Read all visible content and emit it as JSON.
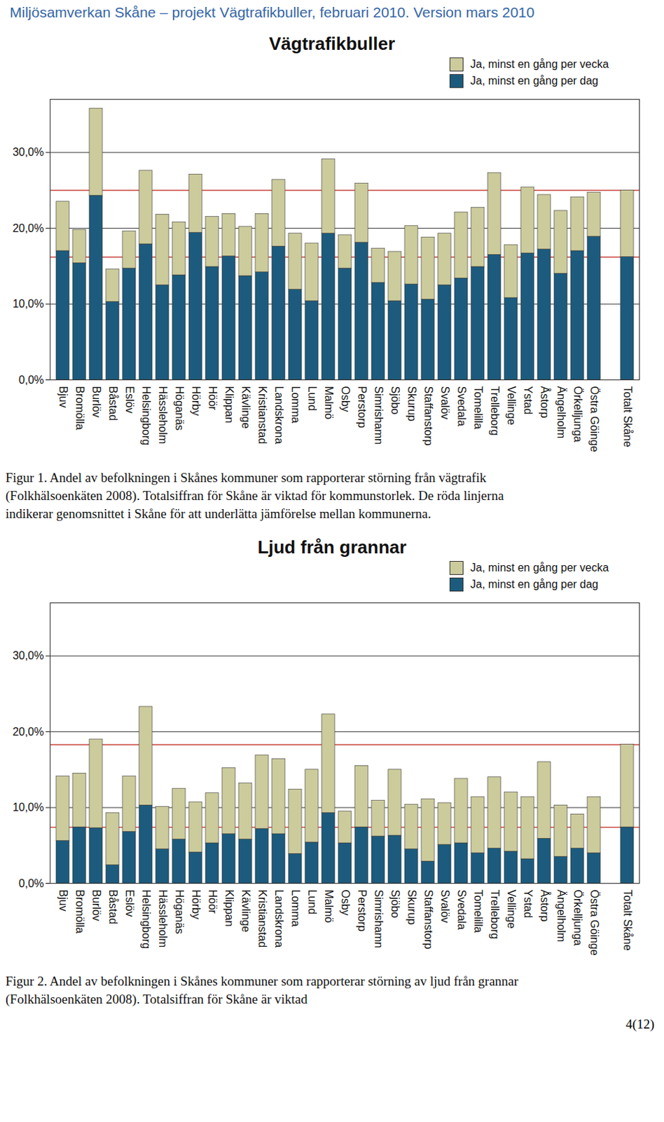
{
  "header": "Miljösamverkan Skåne – projekt Vägtrafikbuller, februari 2010. Version mars 2010",
  "chart_data": [
    {
      "type": "bar",
      "stacked": true,
      "grid": true,
      "title": "Vägtrafikbuller",
      "categories": [
        "Bjuv",
        "Bromölla",
        "Burlöv",
        "Båstad",
        "Eslöv",
        "Helsingborg",
        "Hässleholm",
        "Höganäs",
        "Hörby",
        "Höör",
        "Klippan",
        "Kävlinge",
        "Kristianstad",
        "Landskrona",
        "Lomma",
        "Lund",
        "Malmö",
        "Osby",
        "Perstorp",
        "Simrishamn",
        "Sjöbo",
        "Skurup",
        "Staffanstorp",
        "Svalöv",
        "Svedala",
        "Tomelilla",
        "Trelleborg",
        "Vellinge",
        "Ystad",
        "Åstorp",
        "Ängelholm",
        "Örkelljunga",
        "Östra Göinge",
        null,
        "Totalt Skåne"
      ],
      "series": [
        {
          "name": "Ja, minst en gång per dag",
          "color": "#1c5b7d",
          "values": [
            17.0,
            15.4,
            24.3,
            10.3,
            14.7,
            17.9,
            12.5,
            13.8,
            19.4,
            14.9,
            16.3,
            13.7,
            14.2,
            17.6,
            11.9,
            10.4,
            19.3,
            14.7,
            18.1,
            12.8,
            10.4,
            12.6,
            10.6,
            12.5,
            13.4,
            14.9,
            16.5,
            10.8,
            16.7,
            17.2,
            14.0,
            17.0,
            18.9,
            null,
            16.2
          ]
        },
        {
          "name": "Ja, minst en gång per vecka",
          "color": "#cccb9c",
          "values": [
            6.5,
            4.4,
            11.5,
            4.3,
            4.9,
            9.7,
            9.3,
            7.0,
            7.7,
            6.6,
            5.6,
            6.5,
            7.7,
            8.8,
            7.4,
            7.6,
            9.8,
            4.4,
            7.8,
            4.5,
            6.5,
            7.7,
            8.2,
            6.8,
            8.7,
            7.8,
            10.8,
            7.0,
            8.7,
            7.2,
            8.3,
            7.1,
            5.8,
            null,
            8.8
          ]
        }
      ],
      "average_lines": [
        16.2,
        25.0
      ],
      "ylim": [
        0,
        37
      ],
      "yticks": [
        {
          "value": 0,
          "label": "0,0%"
        },
        {
          "value": 10,
          "label": "10,0%"
        },
        {
          "value": 20,
          "label": "20,0%"
        },
        {
          "value": 30,
          "label": "30,0%"
        }
      ],
      "caption": "Figur 1. Andel av befolkningen i Skånes kommuner som rapporterar störning från vägtrafik (Folkhälsoenkäten 2008). Totalsiffran för Skåne är viktad för kommunstorlek. De röda linjerna indikerar genomsnittet i Skåne för att underlätta jämförelse mellan kommunerna."
    },
    {
      "type": "bar",
      "stacked": true,
      "grid": true,
      "title": "Ljud från grannar",
      "categories": [
        "Bjuv",
        "Bromölla",
        "Burlöv",
        "Båstad",
        "Eslöv",
        "Helsingborg",
        "Hässleholm",
        "Höganäs",
        "Hörby",
        "Höör",
        "Klippan",
        "Kävlinge",
        "Kristianstad",
        "Landskrona",
        "Lomma",
        "Lund",
        "Malmö",
        "Osby",
        "Perstorp",
        "Simrishamn",
        "Sjöbo",
        "Skurup",
        "Staffanstorp",
        "Svalöv",
        "Svedala",
        "Tomelilla",
        "Trelleborg",
        "Vellinge",
        "Ystad",
        "Åstorp",
        "Ängelholm",
        "Örkelljunga",
        "Östra Göinge",
        null,
        "Totalt Skåne"
      ],
      "series": [
        {
          "name": "Ja, minst en gång per dag",
          "color": "#1c5b7d",
          "values": [
            5.6,
            7.4,
            7.3,
            2.4,
            6.8,
            10.3,
            4.5,
            5.8,
            4.1,
            5.3,
            6.5,
            5.8,
            7.2,
            6.5,
            3.9,
            5.4,
            9.3,
            5.3,
            7.4,
            6.2,
            6.3,
            4.5,
            2.9,
            5.1,
            5.3,
            4.0,
            4.6,
            4.2,
            3.2,
            5.9,
            3.5,
            4.6,
            4.0,
            null,
            7.4
          ]
        },
        {
          "name": "Ja, minst en gång per vecka",
          "color": "#cccb9c",
          "values": [
            8.5,
            7.1,
            11.7,
            6.9,
            7.3,
            13.0,
            5.6,
            6.7,
            6.6,
            6.6,
            8.7,
            7.4,
            9.7,
            9.9,
            8.5,
            9.6,
            13.0,
            4.2,
            8.1,
            4.7,
            8.7,
            5.9,
            8.2,
            5.5,
            8.5,
            7.4,
            9.4,
            7.8,
            8.2,
            10.1,
            6.8,
            4.5,
            7.4,
            null,
            10.9
          ]
        }
      ],
      "average_lines": [
        7.4,
        18.3
      ],
      "ylim": [
        0,
        37
      ],
      "yticks": [
        {
          "value": 0,
          "label": "0,0%"
        },
        {
          "value": 10,
          "label": "10,0%"
        },
        {
          "value": 20,
          "label": "20,0%"
        },
        {
          "value": 30,
          "label": "30,0%"
        }
      ],
      "caption": "Figur 2. Andel av befolkningen i Skånes kommuner som rapporterar störning av ljud från grannar (Folkhälsoenkäten 2008). Totalsiffran för Skåne är viktad"
    }
  ],
  "page_number": "4(12)"
}
